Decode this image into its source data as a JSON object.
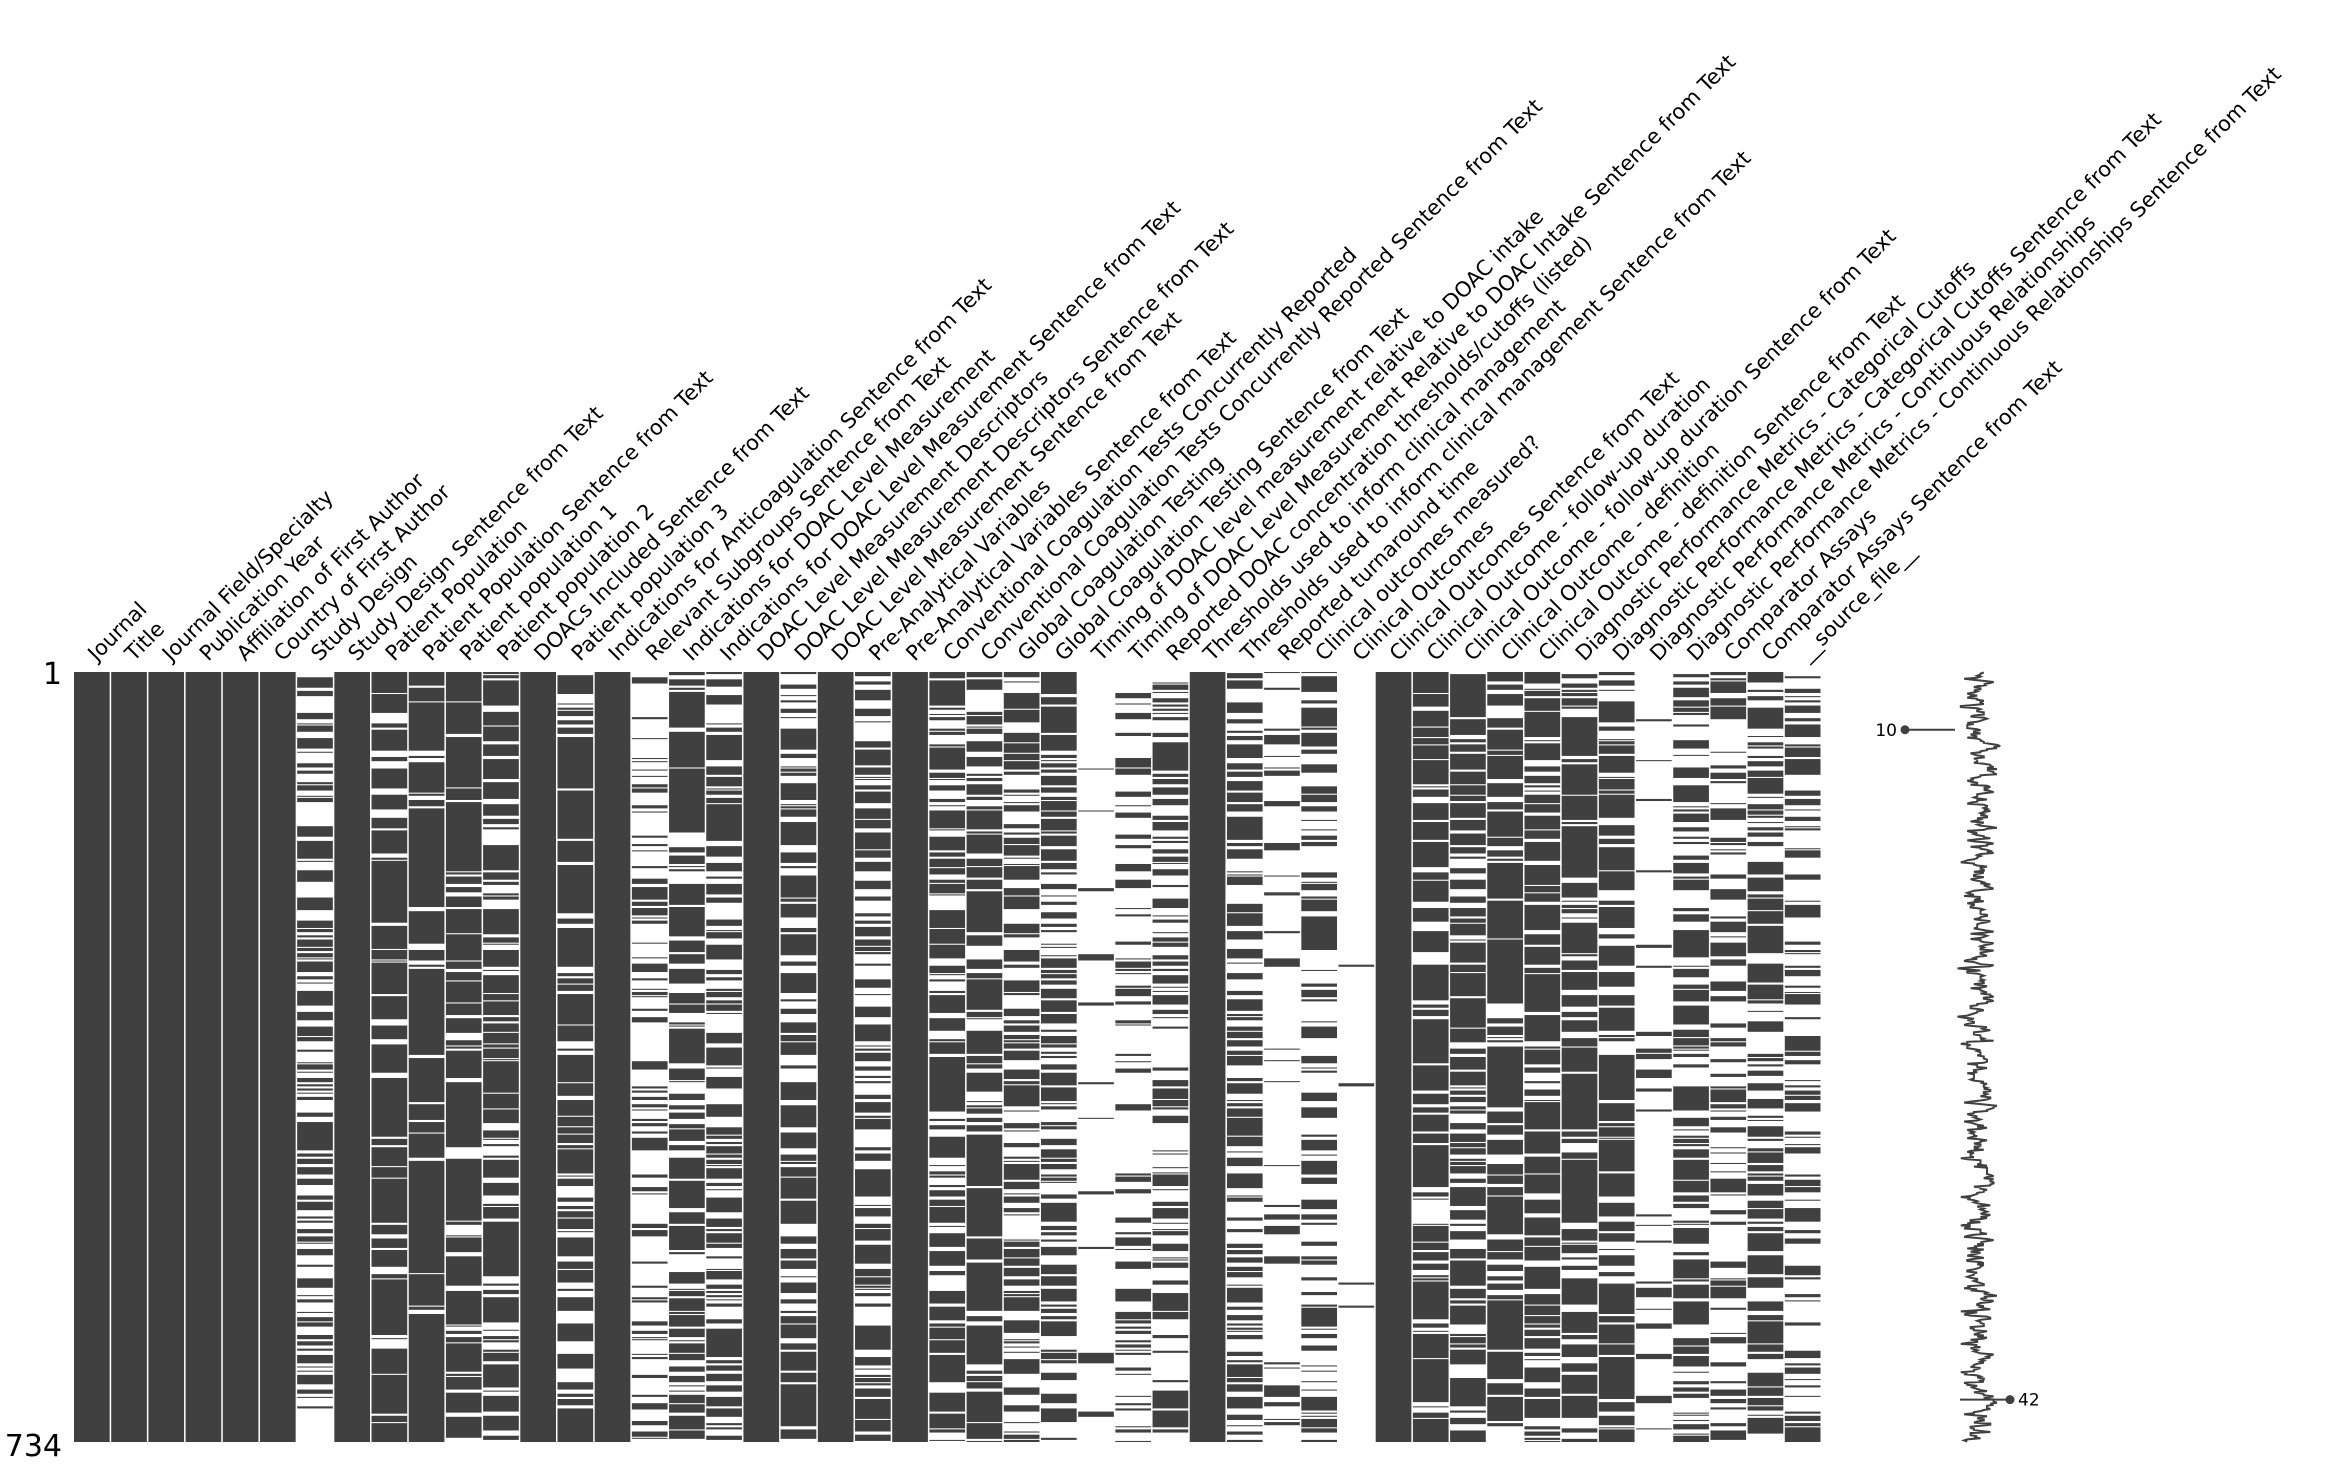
{
  "chart_data": {
    "type": "heatmap",
    "title": "",
    "colors": {
      "present": "#404040",
      "missing": "#ffffff",
      "background": "#ffffff"
    },
    "columns": [
      {
        "name": "Journal",
        "completeness": 0.995
      },
      {
        "name": "Title",
        "completeness": 0.999
      },
      {
        "name": "Journal Field/Specialty",
        "completeness": 1.0
      },
      {
        "name": "Publication Year",
        "completeness": 0.998
      },
      {
        "name": "Affiliation of First Author",
        "completeness": 0.975
      },
      {
        "name": "Country of First Author",
        "completeness": 0.975
      },
      {
        "name": "Study Design",
        "completeness": 0.45
      },
      {
        "name": "Study Design Sentence from Text",
        "completeness": 0.998
      },
      {
        "name": "Patient Population",
        "completeness": 0.85
      },
      {
        "name": "Patient Population Sentence from Text",
        "completeness": 0.94
      },
      {
        "name": "Patient population 1",
        "completeness": 0.86
      },
      {
        "name": "Patient population 2",
        "completeness": 0.75
      },
      {
        "name": "DOACs Included Sentence from Text",
        "completeness": 0.998
      },
      {
        "name": "Patient population 3",
        "completeness": 0.7
      },
      {
        "name": "Indications for Anticoagulation Sentence from Text",
        "completeness": 0.97
      },
      {
        "name": "Relevant Subgroups Sentence from Text",
        "completeness": 0.3
      },
      {
        "name": "Indications for DOAC Level Measurement",
        "completeness": 0.72
      },
      {
        "name": "Indications for DOAC Level Measurement Sentence from Text",
        "completeness": 0.55
      },
      {
        "name": "DOAC Level Measurement Descriptors",
        "completeness": 0.998
      },
      {
        "name": "DOAC Level Measurement Descriptors Sentence from Text",
        "completeness": 0.7
      },
      {
        "name": "DOAC Level Measurement Sentence from Text",
        "completeness": 0.97
      },
      {
        "name": "Pre-Analytical Variables",
        "completeness": 0.55
      },
      {
        "name": "Pre-Analytical Variables Sentence from Text",
        "completeness": 0.985
      },
      {
        "name": "Conventional Coagulation Tests Concurrently Reported",
        "completeness": 0.7
      },
      {
        "name": "Conventional Coagulation Tests Concurrently Reported Sentence from Text",
        "completeness": 0.72
      },
      {
        "name": "Global Coagulation Testing",
        "completeness": 0.55
      },
      {
        "name": "Global Coagulation Testing Sentence from Text",
        "completeness": 0.62
      },
      {
        "name": "Timing of DOAC level measurement relative to DOAC intake",
        "completeness": 0.04
      },
      {
        "name": "Timing of DOAC Level Measurement Relative to DOAC Intake Sentence from Text",
        "completeness": 0.25
      },
      {
        "name": "Reported DOAC concentration thresholds/cutoffs (listed)",
        "completeness": 0.45
      },
      {
        "name": "Thresholds used to inform clinical management",
        "completeness": 0.97
      },
      {
        "name": "Thresholds used to inform clinical management Sentence from Text",
        "completeness": 0.55
      },
      {
        "name": "Reported turnaround time",
        "completeness": 0.1
      },
      {
        "name": "Clinical outcomes measured?",
        "completeness": 0.45
      },
      {
        "name": "Clinical Outcomes",
        "completeness": 0.02
      },
      {
        "name": "Clinical Outcomes Sentence from Text",
        "completeness": 0.999
      },
      {
        "name": "Clinical Outcome - follow-up duration",
        "completeness": 0.78
      },
      {
        "name": "Clinical Outcome - follow-up duration Sentence from Text",
        "completeness": 0.78
      },
      {
        "name": "Clinical Outcome - definition",
        "completeness": 0.8
      },
      {
        "name": "Clinical Outcome - definition Sentence from Text",
        "completeness": 0.78
      },
      {
        "name": "Diagnostic Performance Metrics - Categorical Cutoffs",
        "completeness": 0.8
      },
      {
        "name": "Diagnostic Performance Metrics - Categorical Cutoffs Sentence from Text",
        "completeness": 0.78
      },
      {
        "name": "Diagnostic Performance Metrics - Continuous Relationships",
        "completeness": 0.08
      },
      {
        "name": "Diagnostic Performance Metrics - Continuous Relationships Sentence from Text",
        "completeness": 0.55
      },
      {
        "name": "Comparator Assays",
        "completeness": 0.4
      },
      {
        "name": "Comparator Assays Sentence from Text",
        "completeness": 0.65
      },
      {
        "name": "__source_file__",
        "completeness": 0.3
      }
    ],
    "rows": {
      "first": "1",
      "last": "734",
      "count": 734
    },
    "sparkline": {
      "min_label": "10",
      "max_label": "42",
      "min": 10,
      "max": 42
    }
  }
}
